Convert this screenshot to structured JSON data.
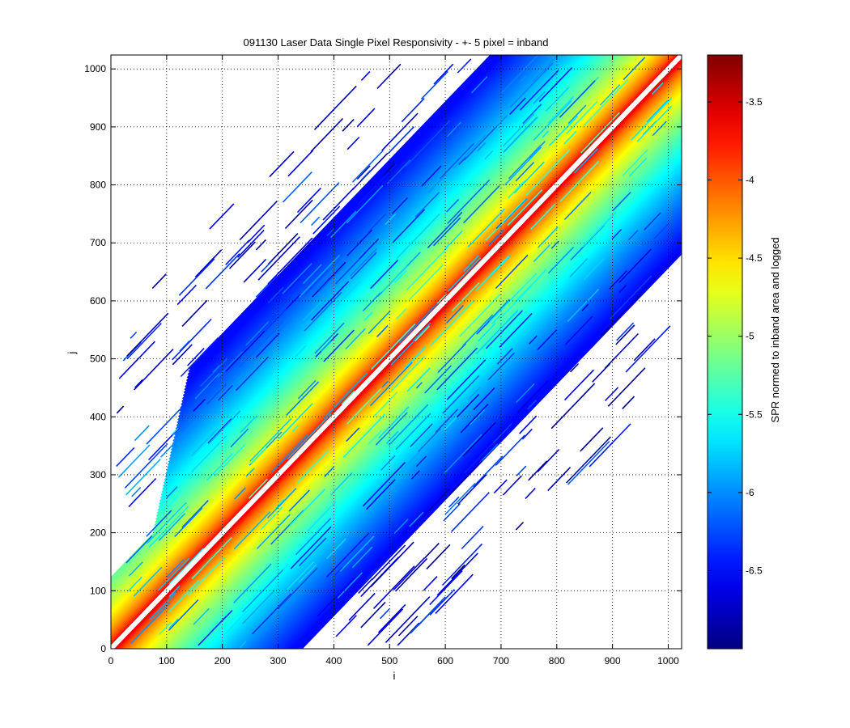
{
  "chart_data": {
    "type": "heatmap",
    "title": "091130 Laser Data  Single Pixel Responsivity - +- 5 pixel = inband",
    "xlabel": "i",
    "ylabel": "j",
    "xlim": [
      0,
      1024
    ],
    "ylim": [
      0,
      1024
    ],
    "xticks": [
      0,
      100,
      200,
      300,
      400,
      500,
      600,
      700,
      800,
      900,
      1000
    ],
    "yticks": [
      0,
      100,
      200,
      300,
      400,
      500,
      600,
      700,
      800,
      900,
      1000
    ],
    "grid": true,
    "colorbar": {
      "label": "SPR normed to inband area and logged",
      "colormap": "jet",
      "range": [
        -7.0,
        -3.2
      ],
      "ticks": [
        -3.5,
        -4,
        -4.5,
        -5,
        -5.5,
        -6,
        -6.5
      ]
    },
    "description_values": {
      "inband_halfwidth_pixels": 5,
      "inband_band_value": "white (excluded)",
      "near_band_value": -3.4,
      "far_field_value": -6.5
    }
  }
}
